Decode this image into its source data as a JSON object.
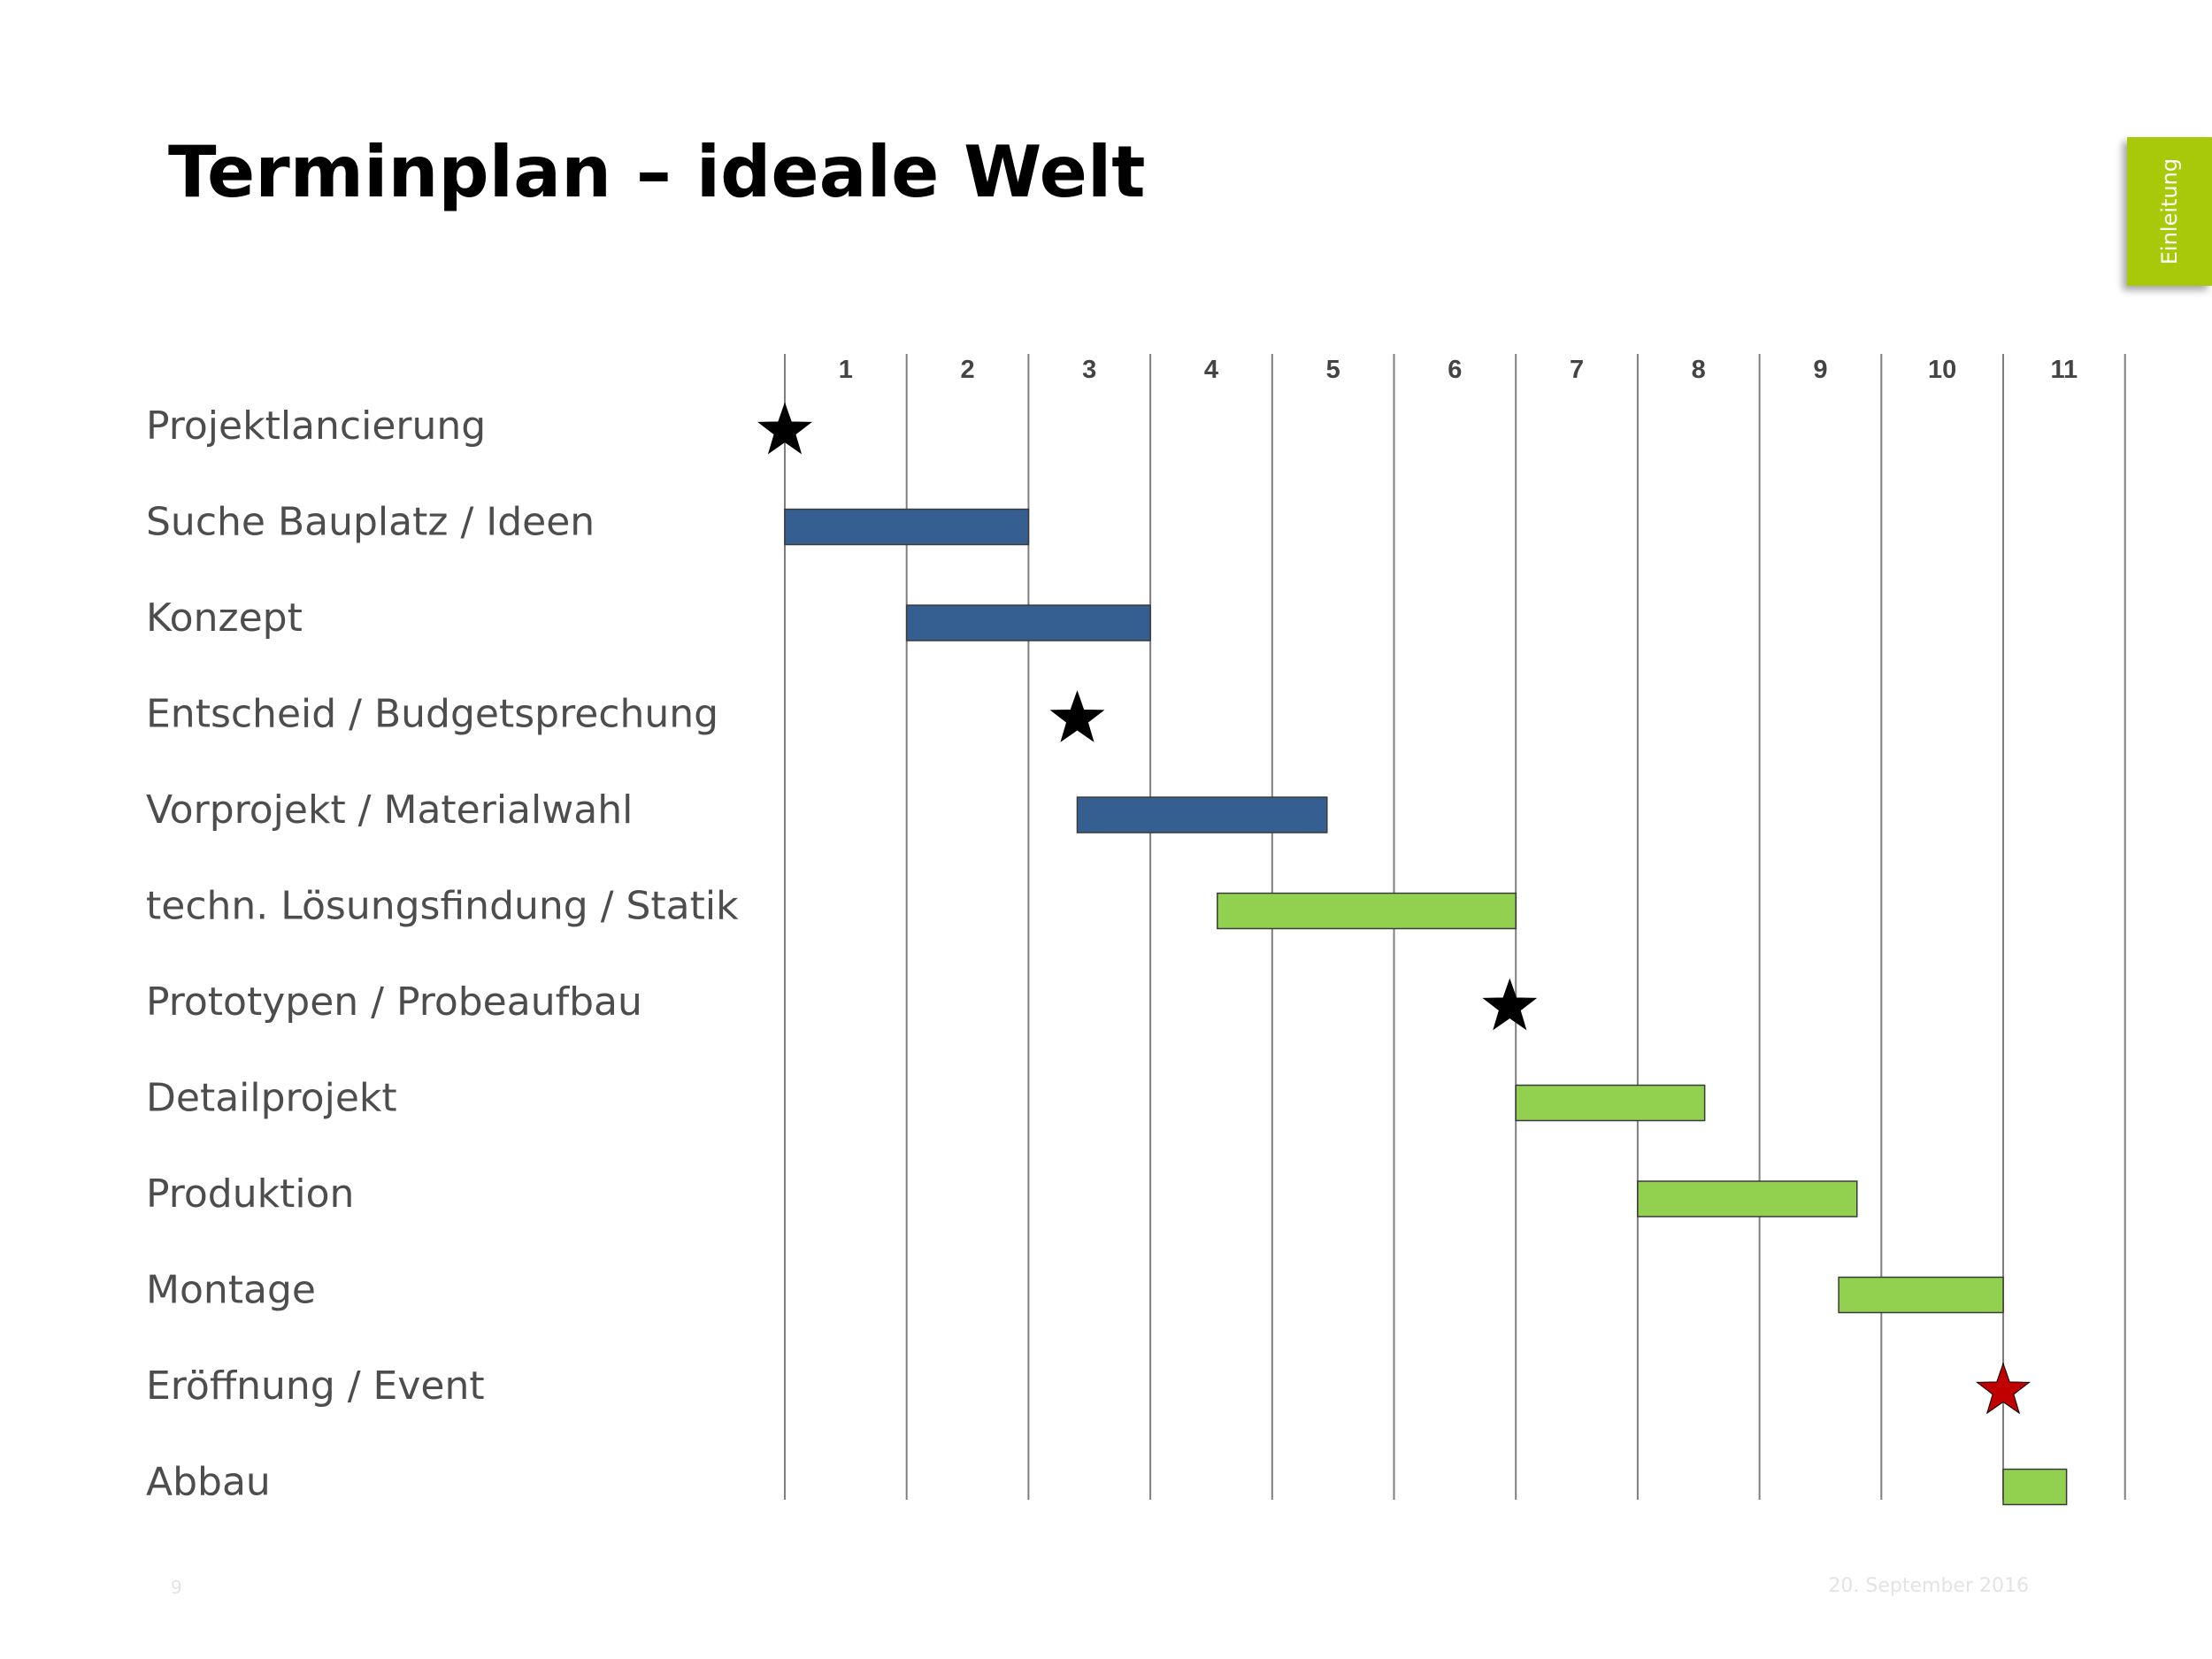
{
  "slide": {
    "title": "Terminplan – ideale Welt",
    "section_tab": "Einleitung",
    "page_number": "9",
    "date": "20. September 2016"
  },
  "colors": {
    "phase_blue": "#365f91",
    "phase_green": "#92d050",
    "milestone": "#000000",
    "milestone_final": "#c00000",
    "tab_green": "#a8c80a",
    "grid": "#7f7f7f"
  },
  "chart_data": {
    "type": "gantt",
    "title": "Terminplan – ideale Welt",
    "periods": [
      "1",
      "2",
      "3",
      "4",
      "5",
      "6",
      "7",
      "8",
      "9",
      "10",
      "11"
    ],
    "tasks": [
      {
        "label": "Projektlancierung",
        "kind": "milestone",
        "at": 0.0,
        "color": "#000000"
      },
      {
        "label": "Suche Bauplatz / Ideen",
        "kind": "bar",
        "start": 0.0,
        "end": 2.0,
        "color": "#365f91"
      },
      {
        "label": "Konzept",
        "kind": "bar",
        "start": 1.0,
        "end": 3.0,
        "color": "#365f91"
      },
      {
        "label": "Entscheid / Budgetsprechung",
        "kind": "milestone",
        "at": 2.4,
        "color": "#000000"
      },
      {
        "label": "Vorprojekt / Materialwahl",
        "kind": "bar",
        "start": 2.4,
        "end": 4.45,
        "color": "#365f91"
      },
      {
        "label": "techn. Lösungsfindung / Statik",
        "kind": "bar",
        "start": 3.55,
        "end": 6.0,
        "color": "#92d050"
      },
      {
        "label": "Prototypen / Probeaufbau",
        "kind": "milestone",
        "at": 5.95,
        "color": "#000000"
      },
      {
        "label": "Detailprojekt",
        "kind": "bar",
        "start": 6.0,
        "end": 7.55,
        "color": "#92d050"
      },
      {
        "label": "Produktion",
        "kind": "bar",
        "start": 7.0,
        "end": 8.8,
        "color": "#92d050"
      },
      {
        "label": "Montage",
        "kind": "bar",
        "start": 8.65,
        "end": 10.0,
        "color": "#92d050"
      },
      {
        "label": "Eröffnung / Event",
        "kind": "milestone",
        "at": 10.0,
        "color": "#c00000"
      },
      {
        "label": "Abbau",
        "kind": "bar",
        "start": 10.0,
        "end": 10.52,
        "color": "#92d050"
      }
    ]
  }
}
